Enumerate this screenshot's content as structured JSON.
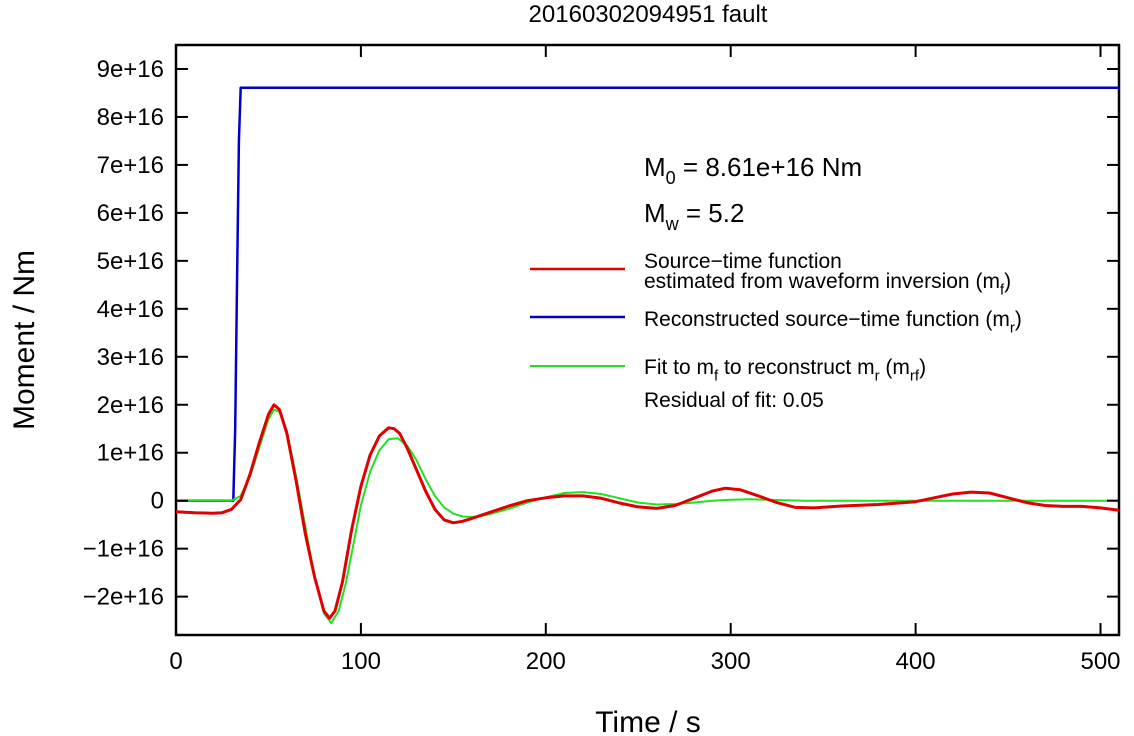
{
  "chart_data": {
    "type": "line",
    "title": "20160302094951 fault",
    "xlabel": "Time / s",
    "ylabel": "Moment / Nm",
    "xlim": [
      0,
      510
    ],
    "ylim": [
      -2.8e+16,
      9.5e+16
    ],
    "x_ticks": [
      0,
      100,
      200,
      300,
      400,
      500
    ],
    "x_tick_labels": [
      "0",
      "100",
      "200",
      "300",
      "400",
      "500"
    ],
    "y_ticks": [
      -2e+16,
      -1e+16,
      0,
      1e+16,
      2e+16,
      3e+16,
      4e+16,
      5e+16,
      6e+16,
      7e+16,
      8e+16,
      9e+16
    ],
    "y_tick_labels": [
      "−2e+16",
      "−1e+16",
      "0",
      "1e+16",
      "2e+16",
      "3e+16",
      "4e+16",
      "5e+16",
      "6e+16",
      "7e+16",
      "8e+16",
      "9e+16"
    ],
    "grid": false,
    "annotations": {
      "m0": {
        "main": "M",
        "sub": "0",
        "rest": " = 8.61e+16 Nm"
      },
      "mw": {
        "main": "M",
        "sub": "w",
        "rest": " = 5.2"
      },
      "residual": "Residual of fit: 0.05"
    },
    "legend_position": "right",
    "series": [
      {
        "legend_lines": [
          {
            "text": "Source−time function",
            "sub": "",
            "tail": ""
          },
          {
            "text": "estimated from waveform inversion (m",
            "sub": "f",
            "tail": ")"
          }
        ],
        "color": "#e00000",
        "width": 3,
        "x": [
          0,
          10,
          20,
          25,
          30,
          35,
          40,
          45,
          50,
          53,
          56,
          60,
          65,
          70,
          75,
          80,
          83,
          86,
          90,
          95,
          100,
          105,
          110,
          115,
          118,
          121,
          125,
          130,
          135,
          140,
          145,
          150,
          155,
          160,
          170,
          180,
          190,
          200,
          210,
          220,
          230,
          240,
          250,
          260,
          270,
          280,
          290,
          297,
          305,
          315,
          325,
          335,
          345,
          360,
          380,
          400,
          410,
          420,
          430,
          440,
          450,
          460,
          470,
          480,
          490,
          500,
          510
        ],
        "y": [
          -2300000000000000.0,
          -2500000000000000.0,
          -2600000000000000.0,
          -2500000000000000.0,
          -1800000000000000.0,
          200000000000000.0,
          5500000000000000.0,
          1.2e+16,
          1.8e+16,
          2e+16,
          1.9e+16,
          1.4e+16,
          4000000000000000.0,
          -7000000000000000.0,
          -1.6e+16,
          -2.3e+16,
          -2.45e+16,
          -2.3e+16,
          -1.7e+16,
          -6000000000000000.0,
          3000000000000000.0,
          9500000000000000.0,
          1.35e+16,
          1.52e+16,
          1.5e+16,
          1.4e+16,
          1.1e+16,
          6500000000000000.0,
          2000000000000000.0,
          -1800000000000000.0,
          -4000000000000000.0,
          -4600000000000000.0,
          -4300000000000000.0,
          -3700000000000000.0,
          -2400000000000000.0,
          -1100000000000000.0,
          0,
          600000000000000.0,
          1000000000000000.0,
          1000000000000000.0,
          500000000000000.0,
          -500000000000000.0,
          -1300000000000000.0,
          -1600000000000000.0,
          -1000000000000000.0,
          500000000000000.0,
          2000000000000000.0,
          2600000000000000.0,
          2300000000000000.0,
          1000000000000000.0,
          -400000000000000.0,
          -1400000000000000.0,
          -1500000000000000.0,
          -1100000000000000.0,
          -800000000000000.0,
          -200000000000000.0,
          600000000000000.0,
          1400000000000000.0,
          1800000000000000.0,
          1600000000000000.0,
          600000000000000.0,
          -400000000000000.0,
          -1000000000000000.0,
          -1200000000000000.0,
          -1200000000000000.0,
          -1500000000000000.0,
          -2000000000000000.0
        ]
      },
      {
        "legend_lines": [
          {
            "text": "Reconstructed source−time function (m",
            "sub": "r",
            "tail": ")"
          }
        ],
        "color": "#0000c8",
        "width": 2.5,
        "x": [
          0,
          31,
          32,
          33,
          34,
          35,
          510
        ],
        "y": [
          0,
          0,
          1.5e+16,
          4.5e+16,
          7.5e+16,
          8.61e+16,
          8.61e+16
        ]
      },
      {
        "legend_lines": [
          {
            "text": "Fit to m",
            "sub": "f",
            "tail": " to reconstruct m"
          },
          {
            "text": "",
            "sub": "",
            "tail": ""
          }
        ],
        "legend_full": [
          {
            "t": "Fit to m",
            "s": false
          },
          {
            "t": "f",
            "s": true
          },
          {
            "t": " to reconstruct m",
            "s": false
          },
          {
            "t": "r",
            "s": true
          },
          {
            "t": " (m",
            "s": false
          },
          {
            "t": "rf",
            "s": true
          },
          {
            "t": ")",
            "s": false
          }
        ],
        "color": "#22e022",
        "width": 2,
        "x": [
          0,
          25,
          30,
          35,
          40,
          45,
          50,
          53,
          56,
          60,
          65,
          70,
          75,
          80,
          84,
          88,
          92,
          96,
          100,
          105,
          110,
          115,
          120,
          125,
          130,
          135,
          140,
          145,
          150,
          155,
          160,
          165,
          170,
          180,
          190,
          200,
          210,
          220,
          230,
          240,
          250,
          260,
          270,
          280,
          290,
          300,
          310,
          320,
          330,
          340,
          360,
          380,
          400,
          420,
          440,
          460,
          480,
          500,
          510
        ],
        "y": [
          0,
          0,
          0,
          1000000000000000.0,
          5000000000000000.0,
          1.1e+16,
          1.7e+16,
          1.9e+16,
          1.85e+16,
          1.45e+16,
          5000000000000000.0,
          -5500000000000000.0,
          -1.6e+16,
          -2.35e+16,
          -2.55e+16,
          -2.3e+16,
          -1.7e+16,
          -9000000000000000.0,
          -1000000000000000.0,
          6000000000000000.0,
          1.05e+16,
          1.28e+16,
          1.3e+16,
          1.15e+16,
          8500000000000000.0,
          4500000000000000.0,
          1000000000000000.0,
          -1400000000000000.0,
          -2700000000000000.0,
          -3300000000000000.0,
          -3400000000000000.0,
          -3200000000000000.0,
          -2800000000000000.0,
          -1700000000000000.0,
          -400000000000000.0,
          700000000000000.0,
          1600000000000000.0,
          1800000000000000.0,
          1400000000000000.0,
          500000000000000.0,
          -400000000000000.0,
          -800000000000000.0,
          -700000000000000.0,
          -400000000000000.0,
          0,
          200000000000000.0,
          300000000000000.0,
          200000000000000.0,
          100000000000000.0,
          0,
          0,
          0,
          0,
          0,
          0,
          0,
          0,
          0,
          0
        ]
      }
    ]
  }
}
